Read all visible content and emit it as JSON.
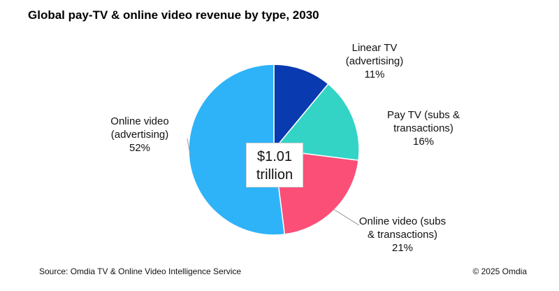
{
  "title": "Global pay-TV & online video revenue by type, 2030",
  "center_label": {
    "line1": "$1.01",
    "line2": "trillion"
  },
  "footer": {
    "source": "Source: Omdia TV & Online Video Intelligence Service",
    "copyright": "© 2025 Omdia"
  },
  "chart_data": {
    "type": "pie",
    "title": "Global pay-TV & online video revenue by type, 2030",
    "total": "$1.01 trillion",
    "slices": [
      {
        "name": "Linear TV (advertising)",
        "lines": [
          "Linear TV",
          "(advertising)"
        ],
        "value": 11,
        "value_label": "11%",
        "color": "#0a3ab0"
      },
      {
        "name": "Pay TV (subs & transactions)",
        "lines": [
          "Pay TV (subs &",
          "transactions)"
        ],
        "value": 16,
        "value_label": "16%",
        "color": "#33d4c6"
      },
      {
        "name": "Online video (subs & transactions)",
        "lines": [
          "Online video (subs",
          "& transactions)"
        ],
        "value": 21,
        "value_label": "21%",
        "color": "#fb4f78"
      },
      {
        "name": "Online video (advertising)",
        "lines": [
          "Online video",
          "(advertising)"
        ],
        "value": 52,
        "value_label": "52%",
        "color": "#2eb3f8"
      }
    ],
    "start_angle_deg": 0,
    "direction": "clockwise"
  }
}
